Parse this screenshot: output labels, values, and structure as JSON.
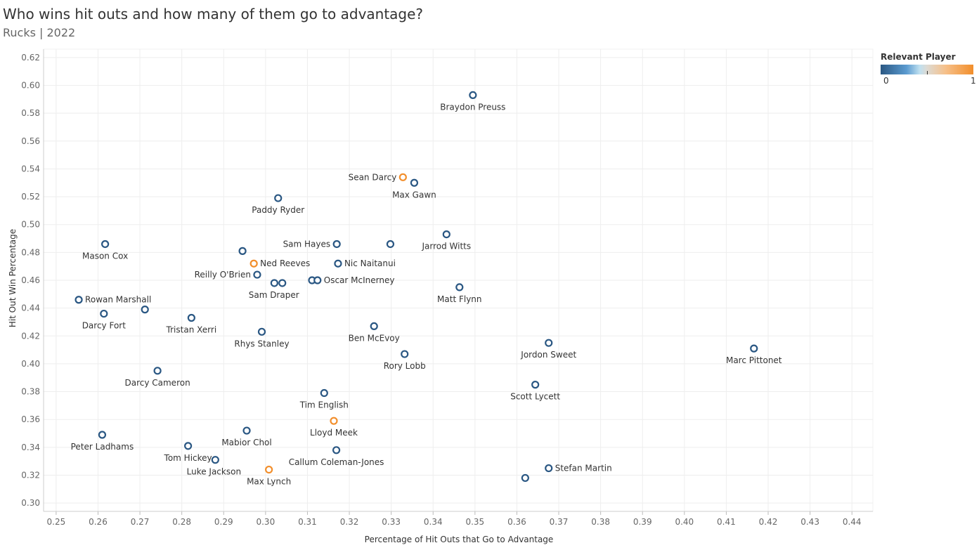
{
  "header": {
    "title": "Who wins hit outs and how many of them go to advantage?",
    "subtitle": "Rucks | 2022"
  },
  "legend": {
    "title": "Relevant Player",
    "min_label": "0",
    "max_label": "1",
    "colors": {
      "low": "#2a5783",
      "high": "#f28e2b"
    }
  },
  "chart_data": {
    "type": "scatter",
    "xlabel": "Percentage of Hit Outs that Go to Advantage",
    "ylabel": "Hit Out Win Percentage",
    "xlim": [
      0.247,
      0.445
    ],
    "ylim": [
      0.294,
      0.626
    ],
    "x_ticks": [
      "0.25",
      "0.26",
      "0.27",
      "0.28",
      "0.29",
      "0.30",
      "0.31",
      "0.32",
      "0.33",
      "0.34",
      "0.35",
      "0.36",
      "0.37",
      "0.38",
      "0.39",
      "0.40",
      "0.41",
      "0.42",
      "0.43",
      "0.44"
    ],
    "y_ticks": [
      "0.30",
      "0.32",
      "0.34",
      "0.36",
      "0.38",
      "0.40",
      "0.42",
      "0.44",
      "0.46",
      "0.48",
      "0.50",
      "0.52",
      "0.54",
      "0.56",
      "0.58",
      "0.60",
      "0.62"
    ],
    "grid": true,
    "points": [
      {
        "name": "Braydon Preuss",
        "x": 0.3495,
        "y": 0.593,
        "relevant": 0,
        "label": "Braydon Preuss"
      },
      {
        "name": "Sean Darcy",
        "x": 0.3328,
        "y": 0.534,
        "relevant": 1,
        "label": "Sean Darcy"
      },
      {
        "name": "Max Gawn",
        "x": 0.3355,
        "y": 0.53,
        "relevant": 0,
        "label": "Max Gawn"
      },
      {
        "name": "Paddy Ryder",
        "x": 0.303,
        "y": 0.519,
        "relevant": 0,
        "label": "Paddy Ryder"
      },
      {
        "name": "Jarrod Witts",
        "x": 0.3432,
        "y": 0.493,
        "relevant": 0,
        "label": "Jarrod Witts"
      },
      {
        "name": "Mason Cox",
        "x": 0.2617,
        "y": 0.486,
        "relevant": 0,
        "label": "Mason Cox"
      },
      {
        "name": "Sam Hayes",
        "x": 0.317,
        "y": 0.486,
        "relevant": 0,
        "label": "Sam Hayes"
      },
      {
        "name": "Player near Sam Hayes",
        "x": 0.3298,
        "y": 0.486,
        "relevant": 0,
        "label": ""
      },
      {
        "name": "Player near Ned Reeves",
        "x": 0.2945,
        "y": 0.481,
        "relevant": 0,
        "label": ""
      },
      {
        "name": "Ned Reeves",
        "x": 0.2972,
        "y": 0.472,
        "relevant": 1,
        "label": "Ned Reeves"
      },
      {
        "name": "Nic Naitanui",
        "x": 0.3173,
        "y": 0.472,
        "relevant": 0,
        "label": "Nic Naitanui"
      },
      {
        "name": "Reilly O'Brien",
        "x": 0.298,
        "y": 0.464,
        "relevant": 0,
        "label": "Reilly O'Brien"
      },
      {
        "name": "Player near Sam Draper",
        "x": 0.3021,
        "y": 0.458,
        "relevant": 0,
        "label": ""
      },
      {
        "name": "Sam Draper",
        "x": 0.304,
        "y": 0.458,
        "relevant": 0,
        "label": "Sam Draper"
      },
      {
        "name": "Player near Oscar McInerney",
        "x": 0.3111,
        "y": 0.46,
        "relevant": 0,
        "label": ""
      },
      {
        "name": "Oscar McInerney",
        "x": 0.3124,
        "y": 0.46,
        "relevant": 0,
        "label": "Oscar McInerney"
      },
      {
        "name": "Matt Flynn",
        "x": 0.3463,
        "y": 0.455,
        "relevant": 0,
        "label": "Matt Flynn"
      },
      {
        "name": "Rowan Marshall",
        "x": 0.2554,
        "y": 0.446,
        "relevant": 0,
        "label": "Rowan Marshall"
      },
      {
        "name": "Player near Darcy Fort",
        "x": 0.2712,
        "y": 0.439,
        "relevant": 0,
        "label": ""
      },
      {
        "name": "Darcy Fort",
        "x": 0.2614,
        "y": 0.436,
        "relevant": 0,
        "label": "Darcy Fort"
      },
      {
        "name": "Tristan Xerri",
        "x": 0.2823,
        "y": 0.433,
        "relevant": 0,
        "label": "Tristan Xerri"
      },
      {
        "name": "Ben McEvoy",
        "x": 0.3259,
        "y": 0.427,
        "relevant": 0,
        "label": "Ben McEvoy"
      },
      {
        "name": "Rhys Stanley",
        "x": 0.2991,
        "y": 0.423,
        "relevant": 0,
        "label": "Rhys Stanley"
      },
      {
        "name": "Jordon Sweet",
        "x": 0.3676,
        "y": 0.415,
        "relevant": 0,
        "label": "Jordon Sweet"
      },
      {
        "name": "Marc Pittonet",
        "x": 0.4166,
        "y": 0.411,
        "relevant": 0,
        "label": "Marc Pittonet"
      },
      {
        "name": "Rory Lobb",
        "x": 0.3332,
        "y": 0.407,
        "relevant": 0,
        "label": "Rory Lobb"
      },
      {
        "name": "Darcy Cameron",
        "x": 0.2742,
        "y": 0.395,
        "relevant": 0,
        "label": "Darcy Cameron"
      },
      {
        "name": "Scott Lycett",
        "x": 0.3644,
        "y": 0.385,
        "relevant": 0,
        "label": "Scott Lycett"
      },
      {
        "name": "Tim English",
        "x": 0.314,
        "y": 0.379,
        "relevant": 0,
        "label": "Tim English"
      },
      {
        "name": "Lloyd Meek",
        "x": 0.3163,
        "y": 0.359,
        "relevant": 1,
        "label": "Lloyd Meek"
      },
      {
        "name": "Mabior Chol",
        "x": 0.2955,
        "y": 0.352,
        "relevant": 0,
        "label": "Mabior Chol"
      },
      {
        "name": "Peter Ladhams",
        "x": 0.261,
        "y": 0.349,
        "relevant": 0,
        "label": "Peter Ladhams"
      },
      {
        "name": "Tom Hickey",
        "x": 0.2815,
        "y": 0.341,
        "relevant": 0,
        "label": "Tom Hickey"
      },
      {
        "name": "Callum Coleman-Jones",
        "x": 0.3169,
        "y": 0.338,
        "relevant": 0,
        "label": "Callum Coleman-Jones"
      },
      {
        "name": "Luke Jackson",
        "x": 0.288,
        "y": 0.331,
        "relevant": 0,
        "label": "Luke Jackson"
      },
      {
        "name": "Stefan Martin",
        "x": 0.3676,
        "y": 0.325,
        "relevant": 0,
        "label": "Stefan Martin"
      },
      {
        "name": "Max Lynch",
        "x": 0.3008,
        "y": 0.324,
        "relevant": 1,
        "label": "Max Lynch"
      },
      {
        "name": "Player near Stefan Martin",
        "x": 0.362,
        "y": 0.318,
        "relevant": 0,
        "label": ""
      }
    ]
  }
}
